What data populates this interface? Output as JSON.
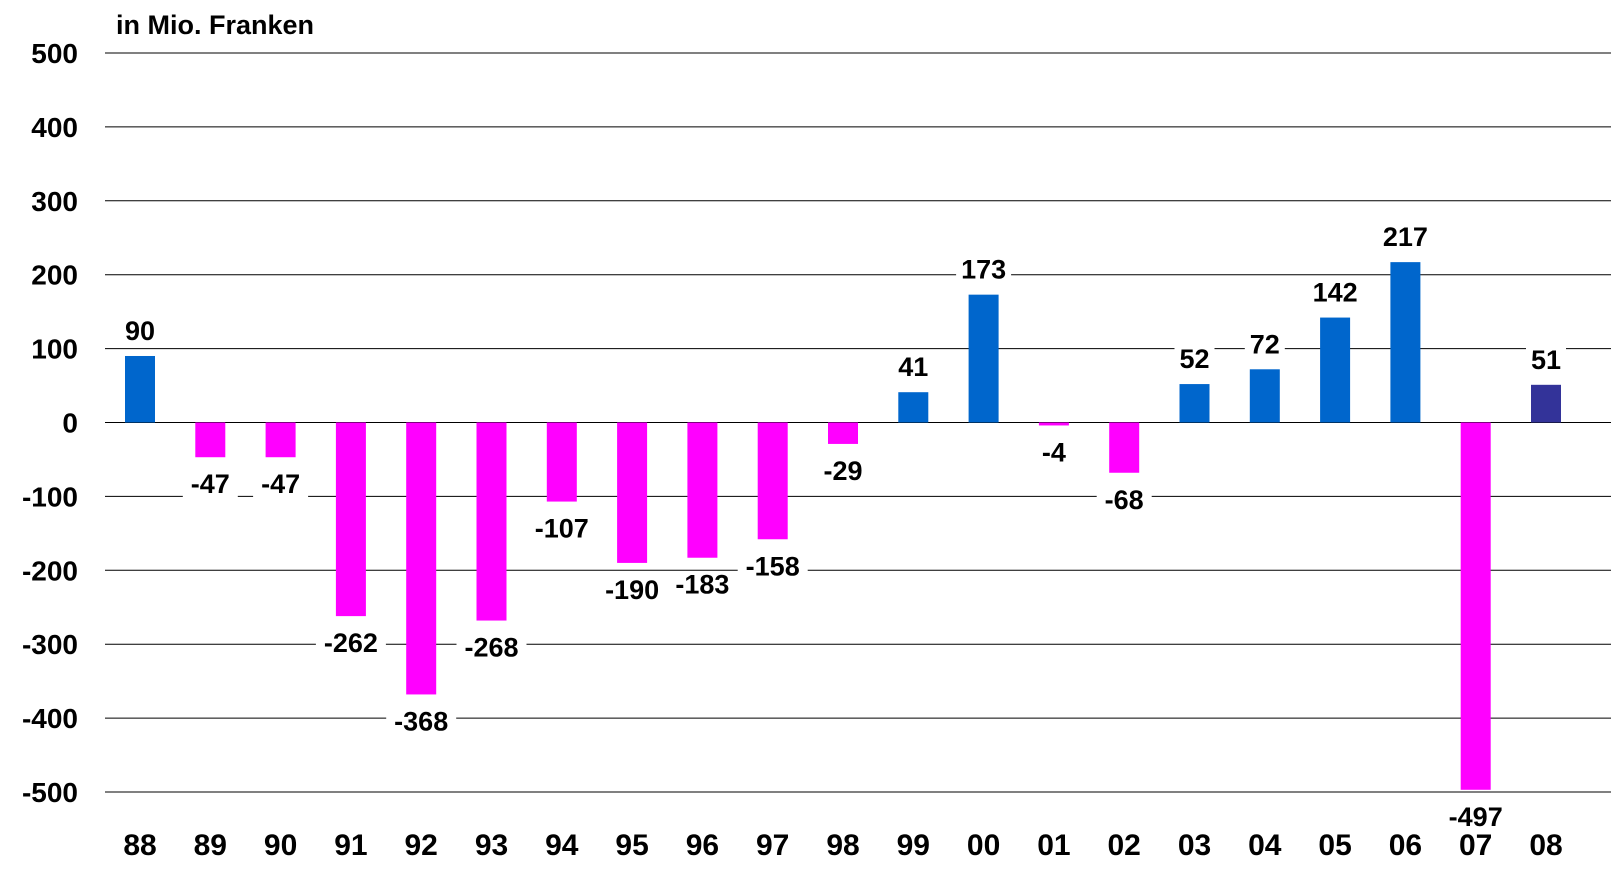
{
  "chart_data": {
    "type": "bar",
    "ylabel": "in Mio. Franken",
    "ylim": [
      -500,
      500
    ],
    "yticks": [
      500,
      400,
      300,
      200,
      100,
      0,
      -100,
      -200,
      -300,
      -400,
      -500
    ],
    "grid": true,
    "categories": [
      "88",
      "89",
      "90",
      "91",
      "92",
      "93",
      "94",
      "95",
      "96",
      "97",
      "98",
      "99",
      "00",
      "01",
      "02",
      "03",
      "04",
      "05",
      "06",
      "07",
      "08"
    ],
    "values": [
      90,
      -47,
      -47,
      -262,
      -368,
      -268,
      -107,
      -190,
      -183,
      -158,
      -29,
      41,
      173,
      -4,
      -68,
      52,
      72,
      142,
      217,
      -497,
      51
    ],
    "data_labels": [
      "90",
      "-47",
      "-47",
      "-262",
      "-368",
      "-268",
      "-107",
      "-190",
      "-183",
      "-158",
      "-29",
      "41",
      "173",
      "-4",
      "-68",
      "52",
      "72",
      "142",
      "217",
      "-497",
      "51"
    ],
    "colors": {
      "positive": "#0066CC",
      "negative": "#FF00FF",
      "last_positive": "#333399",
      "grid": "#000000"
    }
  }
}
